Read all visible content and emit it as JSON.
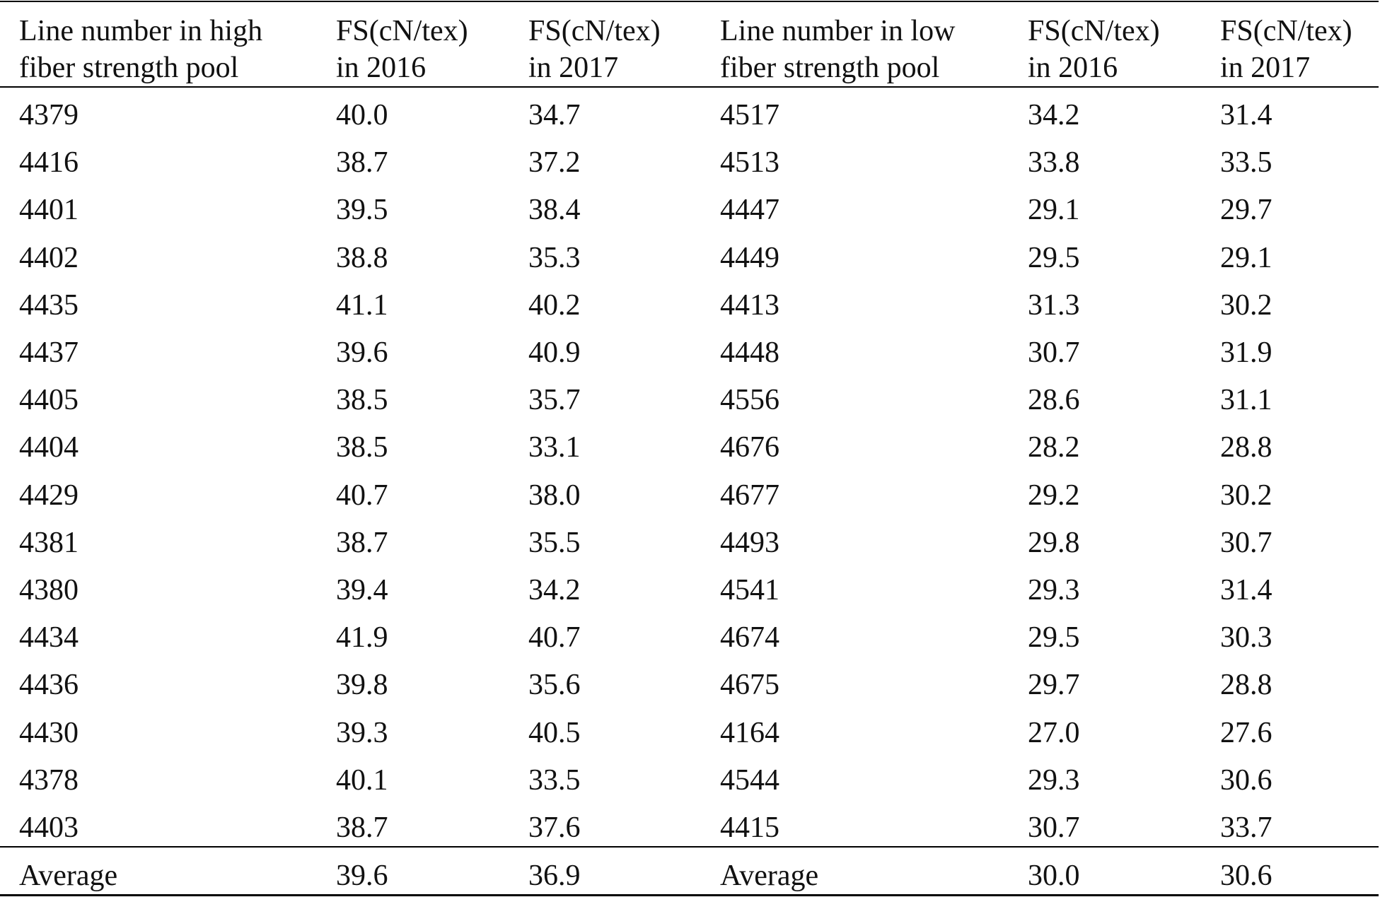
{
  "table": {
    "header": [
      [
        "Line number in high",
        "fiber strength pool"
      ],
      [
        "FS(cN/tex)",
        "in 2016"
      ],
      [
        "FS(cN/tex)",
        "in 2017"
      ],
      [
        "Line number in low",
        "fiber strength pool"
      ],
      [
        "FS(cN/tex)",
        "in 2016"
      ],
      [
        "FS(cN/tex)",
        "in 2017"
      ]
    ],
    "rows": [
      [
        "4379",
        "40.0",
        "34.7",
        "4517",
        "34.2",
        "31.4"
      ],
      [
        "4416",
        "38.7",
        "37.2",
        "4513",
        "33.8",
        "33.5"
      ],
      [
        "4401",
        "39.5",
        "38.4",
        "4447",
        "29.1",
        "29.7"
      ],
      [
        "4402",
        "38.8",
        "35.3",
        "4449",
        "29.5",
        "29.1"
      ],
      [
        "4435",
        "41.1",
        "40.2",
        "4413",
        "31.3",
        "30.2"
      ],
      [
        "4437",
        "39.6",
        "40.9",
        "4448",
        "30.7",
        "31.9"
      ],
      [
        "4405",
        "38.5",
        "35.7",
        "4556",
        "28.6",
        "31.1"
      ],
      [
        "4404",
        "38.5",
        "33.1",
        "4676",
        "28.2",
        "28.8"
      ],
      [
        "4429",
        "40.7",
        "38.0",
        "4677",
        "29.2",
        "30.2"
      ],
      [
        "4381",
        "38.7",
        "35.5",
        "4493",
        "29.8",
        "30.7"
      ],
      [
        "4380",
        "39.4",
        "34.2",
        "4541",
        "29.3",
        "31.4"
      ],
      [
        "4434",
        "41.9",
        "40.7",
        "4674",
        "29.5",
        "30.3"
      ],
      [
        "4436",
        "39.8",
        "35.6",
        "4675",
        "29.7",
        "28.8"
      ],
      [
        "4430",
        "39.3",
        "40.5",
        "4164",
        "27.0",
        "27.6"
      ],
      [
        "4378",
        "40.1",
        "33.5",
        "4544",
        "29.3",
        "30.6"
      ],
      [
        "4403",
        "38.7",
        "37.6",
        "4415",
        "30.7",
        "33.7"
      ]
    ],
    "footer": [
      "Average",
      "39.6",
      "36.9",
      "Average",
      "30.0",
      "30.6"
    ]
  }
}
